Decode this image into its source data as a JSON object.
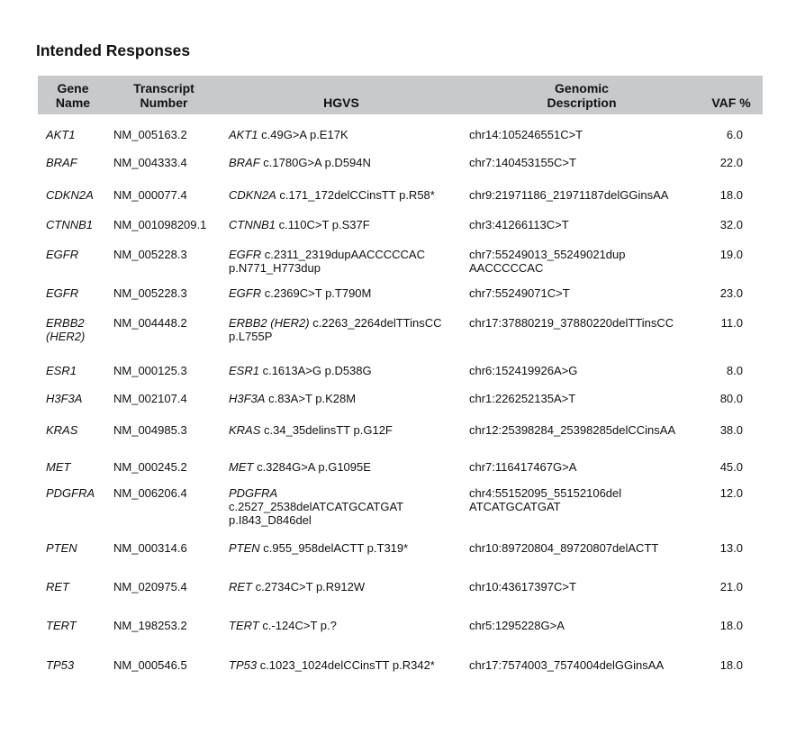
{
  "title": "Intended Responses",
  "columns": {
    "gene": "Gene\nName",
    "transcript": "Transcript\nNumber",
    "hgvs": "HGVS",
    "genomic": "Genomic\nDescription",
    "vaf": "VAF %"
  },
  "rows": [
    {
      "gene": "AKT1",
      "transcript": "NM_005163.2",
      "hgvs_gene": "AKT1",
      "hgvs_change": " c.49G>A p.E17K",
      "genomic": "chr14:105246551C>T",
      "vaf": "6.0"
    },
    {
      "gene": "BRAF",
      "transcript": "NM_004333.4",
      "hgvs_gene": "BRAF",
      "hgvs_change": " c.1780G>A p.D594N",
      "genomic": "chr7:140453155C>T",
      "vaf": "22.0"
    },
    {
      "gene": "CDKN2A",
      "transcript": "NM_000077.4",
      "hgvs_gene": "CDKN2A",
      "hgvs_change": " c.171_172delCCinsTT p.R58*",
      "genomic": "chr9:21971186_21971187delGGinsAA",
      "vaf": "18.0"
    },
    {
      "gene": "CTNNB1",
      "transcript": "NM_001098209.1",
      "hgvs_gene": "CTNNB1",
      "hgvs_change": " c.110C>T p.S37F",
      "genomic": "chr3:41266113C>T",
      "vaf": "32.0"
    },
    {
      "gene": "EGFR",
      "transcript": "NM_005228.3",
      "hgvs_gene": "EGFR",
      "hgvs_change": " c.2311_2319dupAACCCCCAC\np.N771_H773dup",
      "genomic": "chr7:55249013_55249021dup\nAACCCCCAC",
      "vaf": "19.0"
    },
    {
      "gene": "EGFR",
      "transcript": "NM_005228.3",
      "hgvs_gene": "EGFR",
      "hgvs_change": " c.2369C>T p.T790M",
      "genomic": "chr7:55249071C>T",
      "vaf": "23.0"
    },
    {
      "gene": "ERBB2\n(HER2)",
      "transcript": "NM_004448.2",
      "hgvs_gene": "ERBB2 (HER2)",
      "hgvs_change": " c.2263_2264delTTinsCC\np.L755P",
      "genomic": "chr17:37880219_37880220delTTinsCC",
      "vaf": "11.0"
    },
    {
      "gene": "ESR1",
      "transcript": "NM_000125.3",
      "hgvs_gene": "ESR1",
      "hgvs_change": " c.1613A>G p.D538G",
      "genomic": "chr6:152419926A>G",
      "vaf": "8.0"
    },
    {
      "gene": "H3F3A",
      "transcript": "NM_002107.4",
      "hgvs_gene": "H3F3A",
      "hgvs_change": " c.83A>T p.K28M",
      "genomic": "chr1:226252135A>T",
      "vaf": "80.0"
    },
    {
      "gene": "KRAS",
      "transcript": "NM_004985.3",
      "hgvs_gene": "KRAS",
      "hgvs_change": " c.34_35delinsTT p.G12F",
      "genomic": "chr12:25398284_25398285delCCinsAA",
      "vaf": "38.0"
    },
    {
      "gene": "MET",
      "transcript": "NM_000245.2",
      "hgvs_gene": "MET",
      "hgvs_change": " c.3284G>A p.G1095E",
      "genomic": "chr7:116417467G>A",
      "vaf": "45.0"
    },
    {
      "gene": "PDGFRA",
      "transcript": "NM_006206.4",
      "hgvs_gene": "PDGFRA",
      "hgvs_change": "\nc.2527_2538delATCATGCATGAT\np.I843_D846del",
      "genomic": "chr4:55152095_55152106del\nATCATGCATGAT",
      "vaf": "12.0"
    },
    {
      "gene": "PTEN",
      "transcript": "NM_000314.6",
      "hgvs_gene": "PTEN",
      "hgvs_change": " c.955_958delACTT p.T319*",
      "genomic": "chr10:89720804_89720807delACTT",
      "vaf": "13.0"
    },
    {
      "gene": "RET",
      "transcript": "NM_020975.4",
      "hgvs_gene": "RET",
      "hgvs_change": " c.2734C>T p.R912W",
      "genomic": "chr10:43617397C>T",
      "vaf": "21.0"
    },
    {
      "gene": "TERT",
      "transcript": "NM_198253.2",
      "hgvs_gene": "TERT",
      "hgvs_change": " c.-124C>T p.?",
      "genomic": "chr5:1295228G>A",
      "vaf": "18.0"
    },
    {
      "gene": "TP53",
      "transcript": "NM_000546.5",
      "hgvs_gene": "TP53",
      "hgvs_change": " c.1023_1024delCCinsTT p.R342*",
      "genomic": "chr17:7574003_7574004delGGinsAA",
      "vaf": "18.0"
    }
  ]
}
